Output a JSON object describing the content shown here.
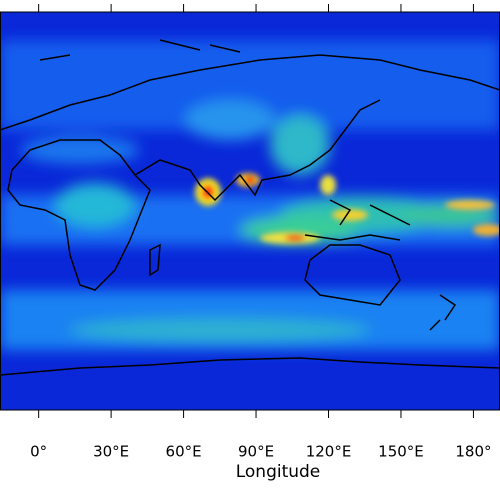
{
  "chart_data": {
    "type": "map",
    "xlabel": "Longitude",
    "xlim": [
      -16,
      191
    ],
    "xticks": [
      {
        "value": 0,
        "label": "0°"
      },
      {
        "value": 30,
        "label": "30°E"
      },
      {
        "value": 60,
        "label": "60°E"
      },
      {
        "value": 90,
        "label": "90°E"
      },
      {
        "value": 120,
        "label": "120°E"
      },
      {
        "value": 150,
        "label": "150°E"
      },
      {
        "value": 180,
        "label": "180°"
      }
    ]
  }
}
